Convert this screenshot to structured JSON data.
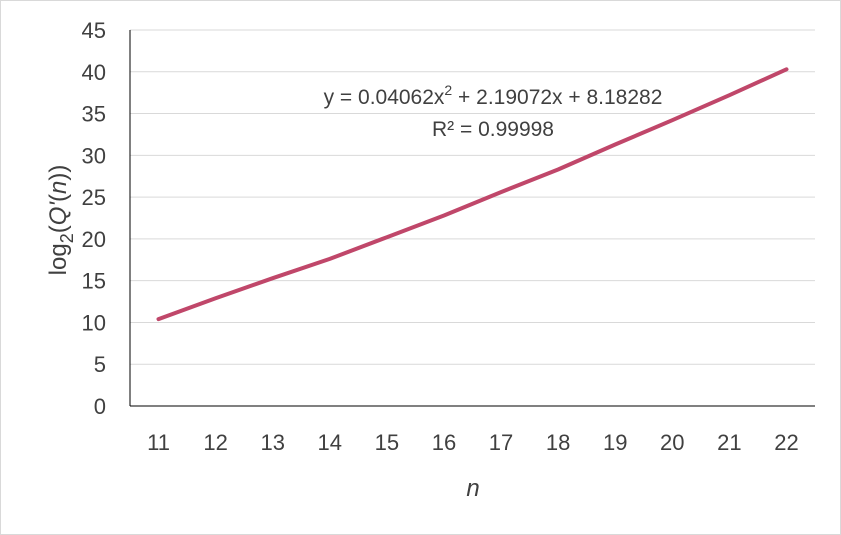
{
  "chart_data": {
    "type": "line",
    "title": "",
    "xlabel": "n",
    "ylabel": {
      "prefix": "log",
      "subscript": "2",
      "open": "(",
      "italic": "Q'",
      "open2": "(",
      "italic2": "n",
      "close": "))"
    },
    "x": [
      11,
      12,
      13,
      14,
      15,
      16,
      17,
      18,
      19,
      20,
      21,
      22
    ],
    "xticks": [
      "11",
      "12",
      "13",
      "14",
      "15",
      "16",
      "17",
      "18",
      "19",
      "20",
      "21",
      "22"
    ],
    "yticks": [
      "0",
      "5",
      "10",
      "15",
      "20",
      "25",
      "30",
      "35",
      "40",
      "45"
    ],
    "ylim": [
      0,
      45
    ],
    "series": [
      {
        "values": [
          10.4,
          12.9,
          15.3,
          17.6,
          20.2,
          22.8,
          25.6,
          28.3,
          31.3,
          34.2,
          37.2,
          40.3
        ],
        "color": "#c0476a"
      }
    ],
    "annotation": {
      "equation_main": "y = 0.04062x",
      "equation_sup": "2",
      "equation_rest": " + 2.19072x + 8.18282",
      "r2": "R² = 0.99998"
    },
    "grid": true,
    "legend": "none"
  }
}
